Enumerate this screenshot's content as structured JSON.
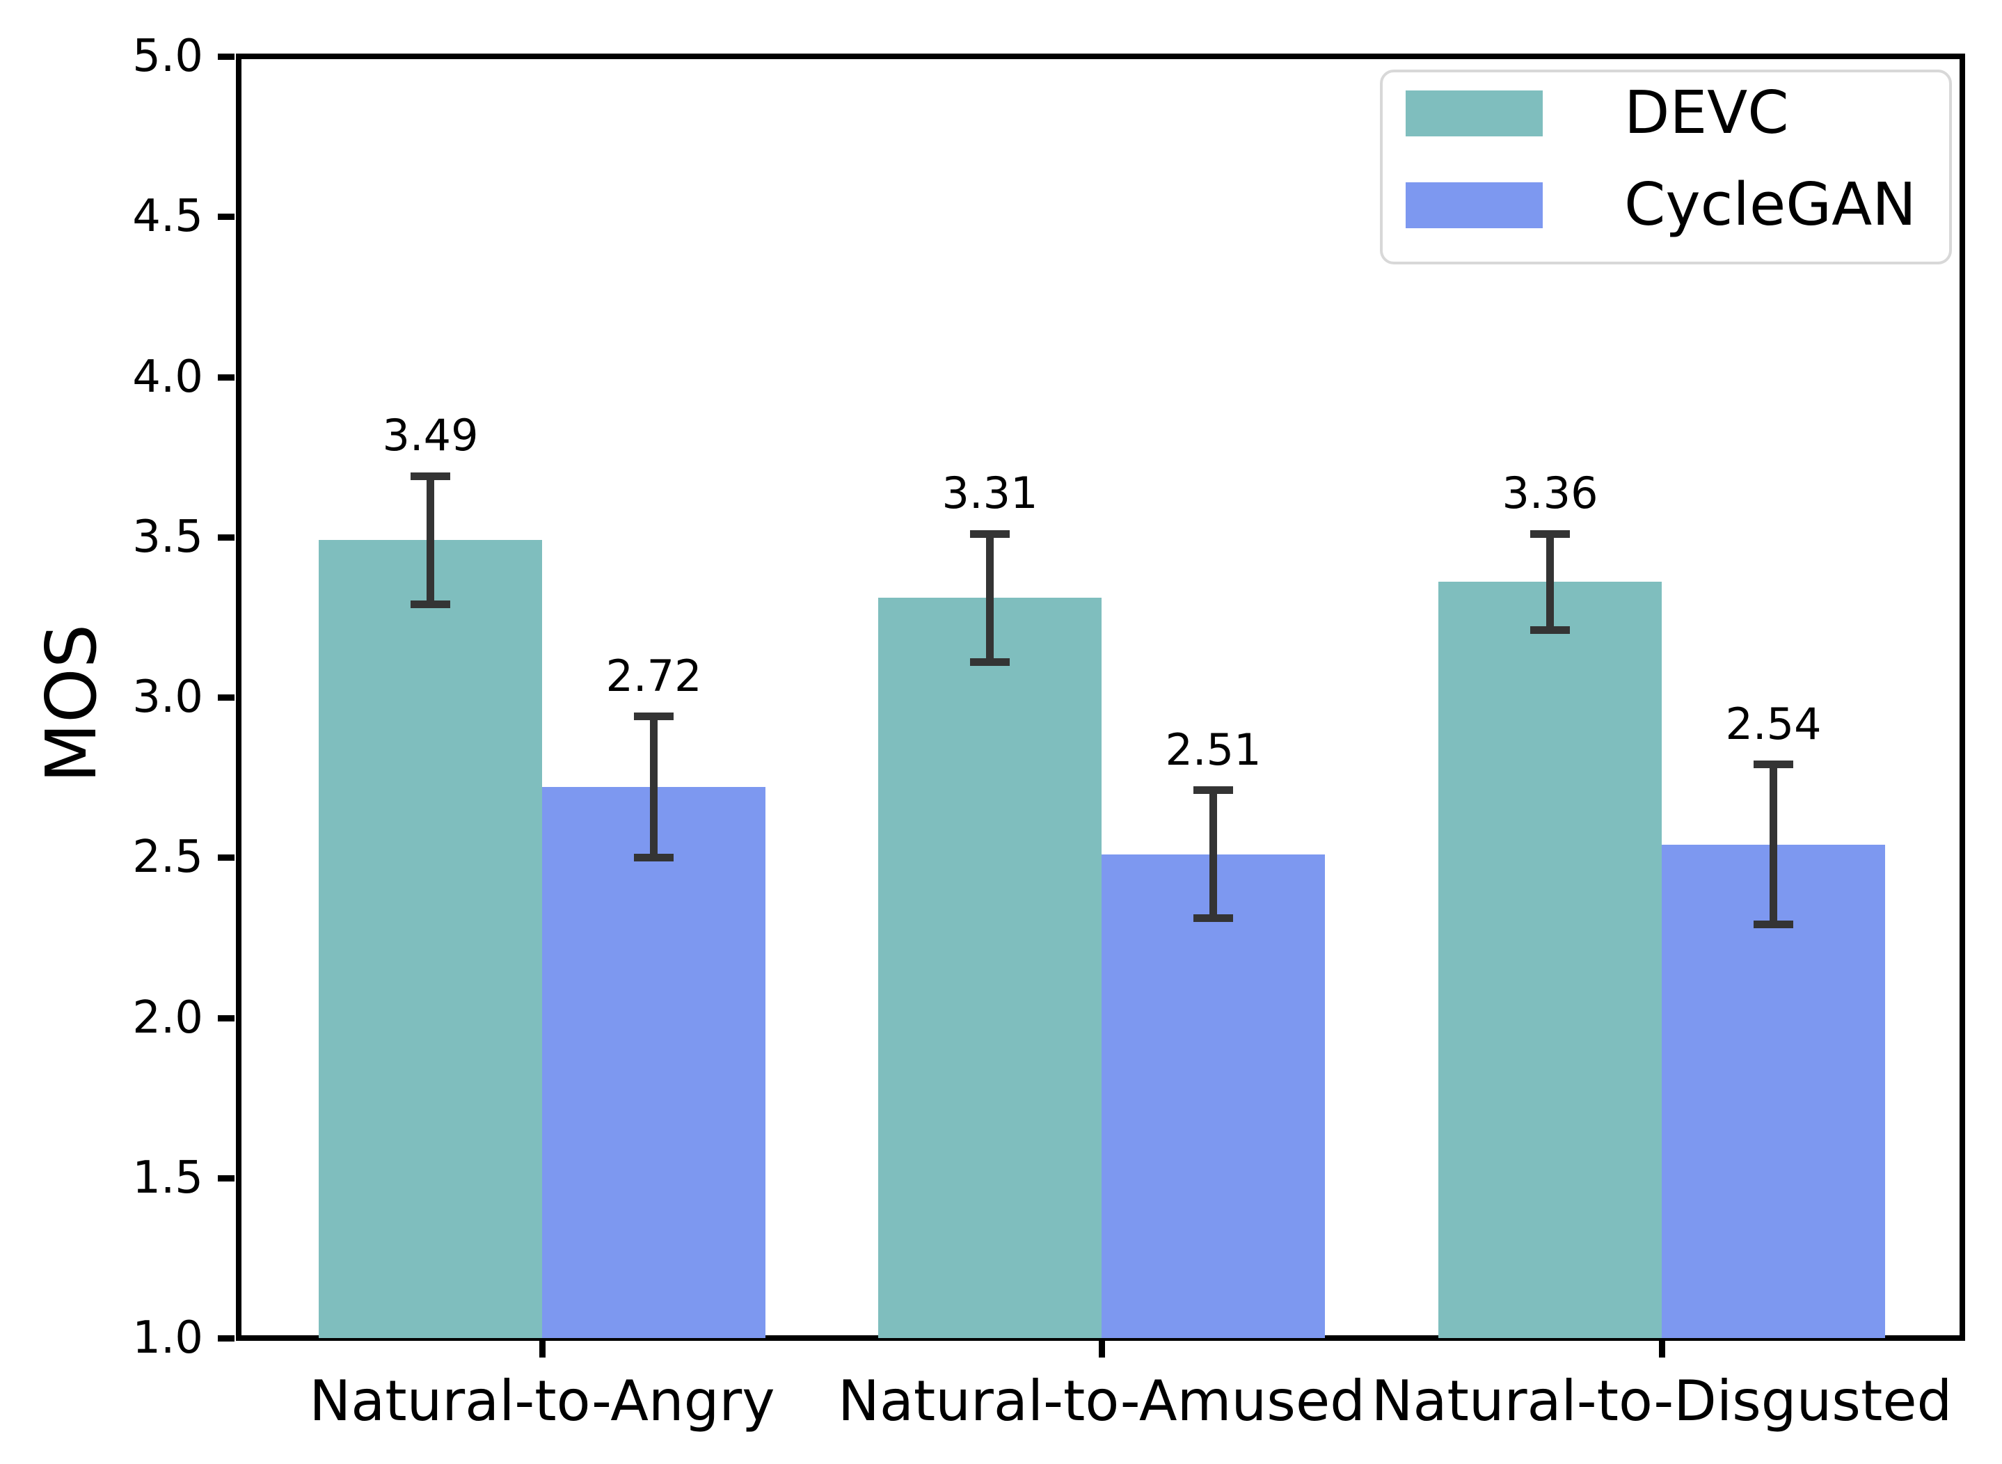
{
  "chart_data": {
    "type": "bar",
    "title": "",
    "xlabel": "",
    "ylabel": "MOS",
    "categories": [
      "Natural-to-Angry",
      "Natural-to-Amused",
      "Natural-to-Disgusted"
    ],
    "series": [
      {
        "name": "DEVC",
        "color": "#7fbebe",
        "values": [
          3.49,
          3.31,
          3.36
        ],
        "errors": [
          0.2,
          0.2,
          0.15
        ],
        "value_labels": [
          "3.49",
          "3.31",
          "3.36"
        ]
      },
      {
        "name": "CycleGAN",
        "color": "#7d98f0",
        "values": [
          2.72,
          2.51,
          2.54
        ],
        "errors": [
          0.22,
          0.2,
          0.25
        ],
        "value_labels": [
          "2.72",
          "2.51",
          "2.54"
        ]
      }
    ],
    "ylim": [
      1.0,
      5.0
    ],
    "yticks": [
      "1.0",
      "1.5",
      "2.0",
      "2.5",
      "3.0",
      "3.5",
      "4.0",
      "4.5",
      "5.0"
    ],
    "grid": false,
    "legend_position": "upper right",
    "error_bar_color": "#343434",
    "axis_color": "#000000",
    "background_color": "#ffffff",
    "legend_border_color": "#d8d8d8"
  }
}
